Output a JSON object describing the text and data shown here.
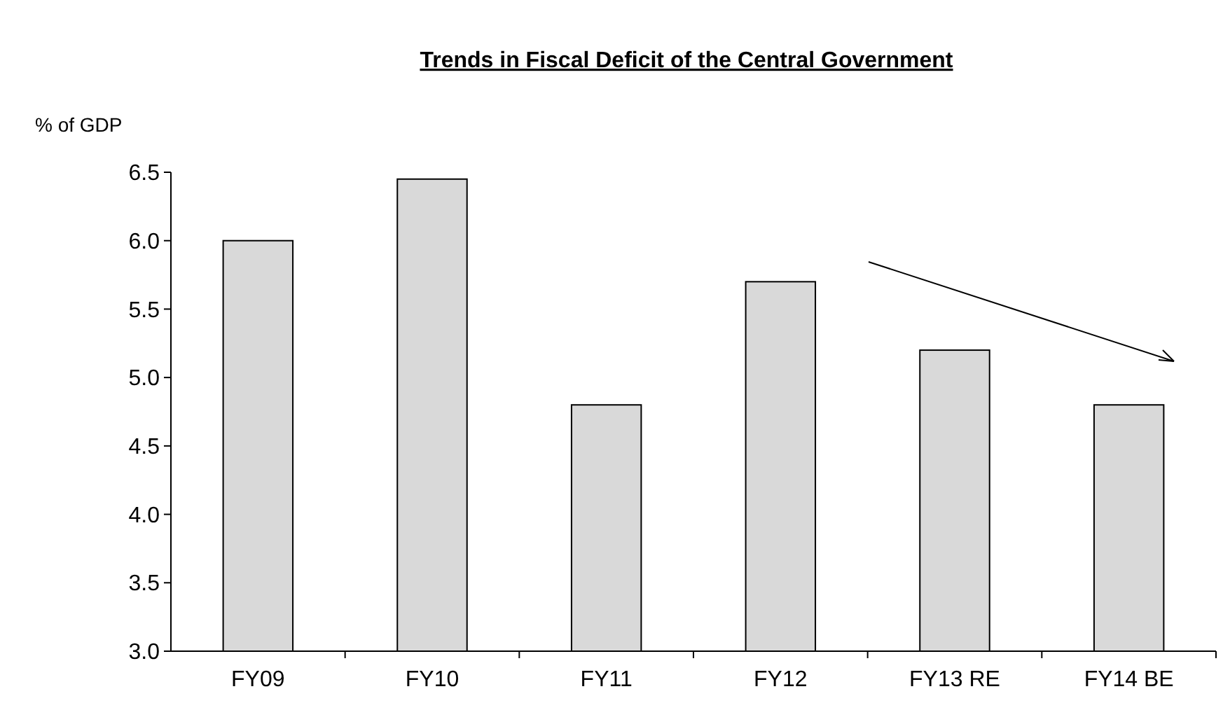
{
  "chart_data": {
    "type": "bar",
    "title": "Trends in Fiscal Deficit of the Central Government",
    "ylabel": "% of GDP",
    "categories": [
      "FY09",
      "FY10",
      "FY11",
      "FY12",
      "FY13 RE",
      "FY14 BE"
    ],
    "values": [
      6.0,
      6.45,
      4.8,
      5.7,
      5.2,
      4.8
    ],
    "color": "#d9d9d9",
    "ylim": [
      3.0,
      6.5
    ],
    "yticks": [
      {
        "value": 3,
        "label": "3.0"
      },
      {
        "value": 3.5,
        "label": "3.5"
      },
      {
        "value": 4,
        "label": "4.0"
      },
      {
        "value": 4.5,
        "label": "4.5"
      },
      {
        "value": 5,
        "label": "5.0"
      },
      {
        "value": 5.5,
        "label": "5.5"
      },
      {
        "value": 6,
        "label": "6.0"
      },
      {
        "value": 6.5,
        "label": "6.5"
      }
    ],
    "grid": false
  }
}
